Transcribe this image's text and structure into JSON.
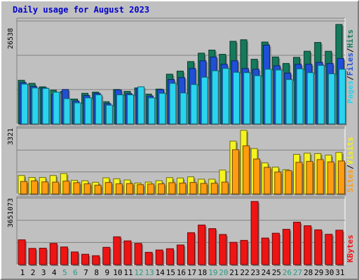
{
  "title": "Daily usage for August 2023",
  "colors": {
    "hits": "#157a5c",
    "files": "#1f4fd6",
    "pages": "#2ad4ef",
    "visits": "#f5f21f",
    "sites": "#ff9c0f",
    "kbytes": "#ef1414",
    "weekend_label": "#2b9a80",
    "weekday_label": "#000000",
    "label_blue": "#0000cc"
  },
  "chart_data": [
    {
      "type": "bar",
      "panel": "hits-files-pages",
      "max_label": "26538",
      "ylim": [
        0,
        26538
      ],
      "legend": [
        "Pages",
        "/",
        "Files",
        "/",
        "Hits"
      ],
      "categories": [
        "1",
        "2",
        "3",
        "4",
        "5",
        "6",
        "7",
        "8",
        "9",
        "10",
        "11",
        "12",
        "13",
        "14",
        "15",
        "16",
        "17",
        "18",
        "19",
        "20",
        "21",
        "22",
        "23",
        "24",
        "25",
        "26",
        "27",
        "28",
        "29",
        "30",
        "31"
      ],
      "weekend_days": [
        "5",
        "6",
        "12",
        "13",
        "19",
        "20",
        "26",
        "27"
      ],
      "series": [
        {
          "name": "Hits",
          "values": [
            11400,
            10600,
            9700,
            8800,
            8500,
            6500,
            8000,
            8300,
            5800,
            9000,
            8500,
            9400,
            7800,
            9100,
            13000,
            13800,
            16300,
            18500,
            19300,
            18200,
            21600,
            22000,
            16900,
            21400,
            17500,
            15800,
            17400,
            19000,
            21300,
            19000,
            26000
          ]
        },
        {
          "name": "Files",
          "values": [
            10800,
            9800,
            9400,
            7700,
            9000,
            6000,
            7400,
            8000,
            5300,
            8900,
            7900,
            9400,
            7300,
            9000,
            11600,
            12100,
            14500,
            16500,
            17500,
            15600,
            16500,
            14500,
            14300,
            20600,
            15200,
            13300,
            15600,
            15600,
            16100,
            15800,
            17100
          ]
        },
        {
          "name": "Pages",
          "values": [
            10400,
            9400,
            9300,
            8300,
            6600,
            5500,
            6800,
            7600,
            4900,
            7600,
            7600,
            9700,
            6800,
            8000,
            10600,
            8100,
            10300,
            12200,
            13900,
            14500,
            13500,
            13400,
            12600,
            14300,
            14100,
            11600,
            14400,
            13400,
            15300,
            13100,
            14300
          ]
        }
      ]
    },
    {
      "type": "bar",
      "panel": "visits-sites",
      "max_label": "3321",
      "ylim": [
        0,
        3321
      ],
      "legend": [
        "Sites",
        "/",
        "Visits"
      ],
      "categories": [
        "1",
        "2",
        "3",
        "4",
        "5",
        "6",
        "7",
        "8",
        "9",
        "10",
        "11",
        "12",
        "13",
        "14",
        "15",
        "16",
        "17",
        "18",
        "19",
        "20",
        "21",
        "22",
        "23",
        "24",
        "25",
        "26",
        "27",
        "28",
        "29",
        "30",
        "31"
      ],
      "series": [
        {
          "name": "Visits",
          "values": [
            950,
            850,
            850,
            950,
            1050,
            700,
            680,
            600,
            830,
            780,
            720,
            560,
            610,
            680,
            840,
            820,
            880,
            760,
            760,
            1230,
            2720,
            3280,
            2340,
            1600,
            1380,
            1250,
            2040,
            2100,
            2080,
            2000,
            2140
          ]
        },
        {
          "name": "Sites",
          "values": [
            640,
            670,
            620,
            610,
            660,
            580,
            520,
            450,
            590,
            520,
            530,
            480,
            510,
            520,
            580,
            560,
            590,
            540,
            550,
            610,
            2280,
            2480,
            1800,
            1370,
            1130,
            1200,
            1630,
            1680,
            1770,
            1650,
            1700
          ]
        }
      ]
    },
    {
      "type": "bar",
      "panel": "kbytes",
      "max_label": "3651073",
      "ylim": [
        0,
        3651073
      ],
      "legend": [
        "KBytes"
      ],
      "categories": [
        "1",
        "2",
        "3",
        "4",
        "5",
        "6",
        "7",
        "8",
        "9",
        "10",
        "11",
        "12",
        "13",
        "14",
        "15",
        "16",
        "17",
        "18",
        "19",
        "20",
        "21",
        "22",
        "23",
        "24",
        "25",
        "26",
        "27",
        "28",
        "29",
        "30",
        "31"
      ],
      "series": [
        {
          "name": "KBytes",
          "values": [
            1390000,
            910000,
            920000,
            1190000,
            990000,
            710000,
            580000,
            500000,
            970000,
            1560000,
            1330000,
            1190000,
            690000,
            820000,
            890000,
            1100000,
            1790000,
            2220000,
            2020000,
            1690000,
            1250000,
            1360000,
            3540000,
            1490000,
            1760000,
            1980000,
            2380000,
            2180000,
            1950000,
            1700000,
            1930000
          ]
        }
      ]
    }
  ]
}
